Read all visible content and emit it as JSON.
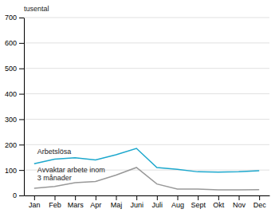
{
  "chart_data": {
    "type": "line",
    "y_label": "tusental",
    "categories": [
      "Jan",
      "Feb",
      "Mars",
      "Apr",
      "Maj",
      "Juni",
      "Juli",
      "Aug",
      "Sept",
      "Okt",
      "Nov",
      "Dec"
    ],
    "series": [
      {
        "color": "#1da8cd",
        "values": [
          125,
          143,
          148,
          140,
          160,
          185,
          110,
          103,
          93,
          92,
          93,
          97
        ]
      },
      {
        "color": "#999999",
        "values": [
          28,
          35,
          50,
          55,
          80,
          110,
          45,
          25,
          25,
          22,
          22,
          23
        ]
      }
    ],
    "annotations": [
      "Arbetslösa",
      "Avvaktar arbete inom\n3 månader"
    ],
    "ylim": [
      0,
      700
    ],
    "yticks": [
      0,
      100,
      200,
      300,
      400,
      500,
      600,
      700
    ],
    "grid": true
  }
}
